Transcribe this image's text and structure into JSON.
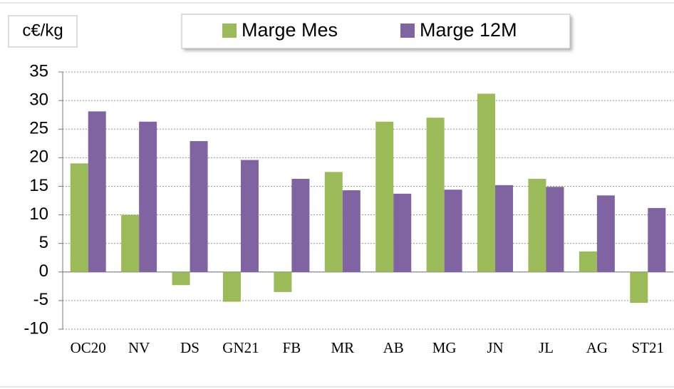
{
  "chart_data": {
    "type": "bar",
    "y_label": "c€/kg",
    "categories": [
      "OC20",
      "NV",
      "DS",
      "GN21",
      "FB",
      "MR",
      "AB",
      "MG",
      "JN",
      "JL",
      "AG",
      "ST21"
    ],
    "series": [
      {
        "name": "Marge Mes",
        "color": "#9bbb59",
        "values": [
          19,
          10,
          -2.3,
          -5.2,
          -3.5,
          17.5,
          26.3,
          27,
          31.2,
          16.3,
          3.6,
          -5.4
        ]
      },
      {
        "name": "Marge 12M",
        "color": "#8064a2",
        "values": [
          28.1,
          26.3,
          22.9,
          19.6,
          16.3,
          14.3,
          13.7,
          14.4,
          15.2,
          14.9,
          13.4,
          11.2
        ]
      }
    ],
    "ylim": [
      -10,
      35
    ],
    "yticks": [
      -10,
      -5,
      0,
      5,
      10,
      15,
      20,
      25,
      30,
      35
    ],
    "grid": true,
    "legend": "top"
  }
}
